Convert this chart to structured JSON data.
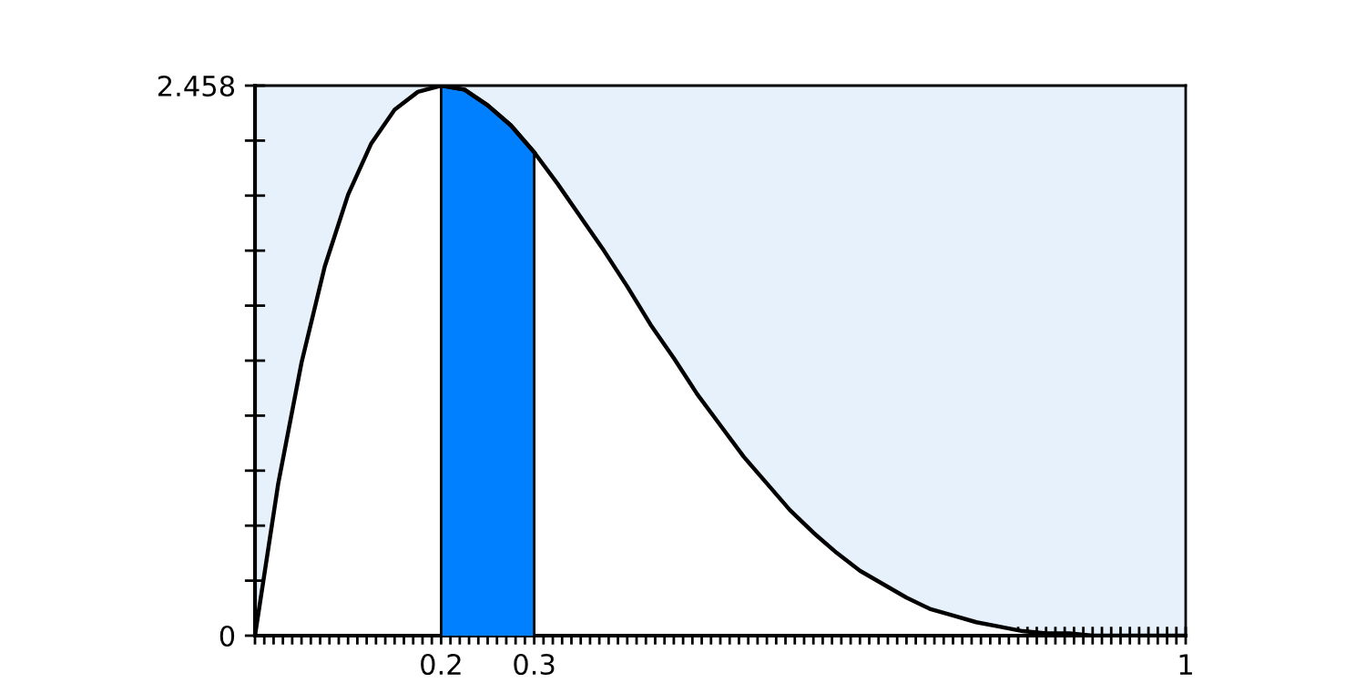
{
  "chart_data": {
    "type": "area",
    "series": [
      {
        "color": "#ffffff",
        "x": [
          0,
          0.025,
          0.05,
          0.075,
          0.1,
          0.125,
          0.15,
          0.175,
          0.2,
          0.225,
          0.25,
          0.275,
          0.3,
          0.325,
          0.35,
          0.375,
          0.4,
          0.425,
          0.45,
          0.475,
          0.5,
          0.525,
          0.55,
          0.575,
          0.6,
          0.625,
          0.65,
          0.675,
          0.7,
          0.725,
          0.75,
          0.775,
          0.8,
          0.825,
          0.85,
          0.875,
          0.9,
          0.925,
          0.95,
          0.975,
          1
        ],
        "values": [
          0,
          0.68,
          1.22,
          1.65,
          1.97,
          2.2,
          2.35,
          2.43,
          2.458,
          2.44,
          2.37,
          2.28,
          2.16,
          2.02,
          1.87,
          1.72,
          1.56,
          1.39,
          1.24,
          1.08,
          0.94,
          0.8,
          0.68,
          0.56,
          0.46,
          0.37,
          0.29,
          0.23,
          0.17,
          0.12,
          0.09,
          0.06,
          0.04,
          0.02,
          0.01,
          0.01,
          0,
          0,
          0,
          0,
          0
        ]
      },
      {
        "color": "#0080ff",
        "x": [
          0.2,
          0.225,
          0.25,
          0.275,
          0.3
        ],
        "values": [
          2.458,
          2.44,
          2.37,
          2.28,
          2.16
        ]
      }
    ],
    "xlim": [
      0,
      1
    ],
    "ylim": [
      0,
      2.458
    ],
    "xticks": [
      {
        "value": 0,
        "label": null
      },
      {
        "value": 0.01,
        "label": null
      },
      {
        "value": 0.02,
        "label": null
      },
      {
        "value": 0.03,
        "label": null
      },
      {
        "value": 0.04,
        "label": null
      },
      {
        "value": 0.05,
        "label": null
      },
      {
        "value": 0.06,
        "label": null
      },
      {
        "value": 0.07,
        "label": null
      },
      {
        "value": 0.08,
        "label": null
      },
      {
        "value": 0.09,
        "label": null
      },
      {
        "value": 0.1,
        "label": null
      },
      {
        "value": 0.11,
        "label": null
      },
      {
        "value": 0.12,
        "label": null
      },
      {
        "value": 0.13,
        "label": null
      },
      {
        "value": 0.14,
        "label": null
      },
      {
        "value": 0.15,
        "label": null
      },
      {
        "value": 0.16,
        "label": null
      },
      {
        "value": 0.17,
        "label": null
      },
      {
        "value": 0.18,
        "label": null
      },
      {
        "value": 0.19,
        "label": null
      },
      0.2,
      {
        "value": 0.21,
        "label": null
      },
      {
        "value": 0.22,
        "label": null
      },
      {
        "value": 0.23,
        "label": null
      },
      {
        "value": 0.24,
        "label": null
      },
      {
        "value": 0.25,
        "label": null
      },
      {
        "value": 0.26,
        "label": null
      },
      {
        "value": 0.27,
        "label": null
      },
      {
        "value": 0.28,
        "label": null
      },
      {
        "value": 0.29,
        "label": null
      },
      0.3,
      {
        "value": 0.31,
        "label": null
      },
      {
        "value": 0.32,
        "label": null
      },
      {
        "value": 0.33,
        "label": null
      },
      {
        "value": 0.34,
        "label": null
      },
      {
        "value": 0.35,
        "label": null
      },
      {
        "value": 0.36,
        "label": null
      },
      {
        "value": 0.37,
        "label": null
      },
      {
        "value": 0.38,
        "label": null
      },
      {
        "value": 0.39,
        "label": null
      },
      {
        "value": 0.4,
        "label": null
      },
      {
        "value": 0.41,
        "label": null
      },
      {
        "value": 0.42,
        "label": null
      },
      {
        "value": 0.43,
        "label": null
      },
      {
        "value": 0.44,
        "label": null
      },
      {
        "value": 0.45,
        "label": null
      },
      {
        "value": 0.46,
        "label": null
      },
      {
        "value": 0.47,
        "label": null
      },
      {
        "value": 0.48,
        "label": null
      },
      {
        "value": 0.49,
        "label": null
      },
      {
        "value": 0.5,
        "label": null
      },
      {
        "value": 0.51,
        "label": null
      },
      {
        "value": 0.52,
        "label": null
      },
      {
        "value": 0.53,
        "label": null
      },
      {
        "value": 0.54,
        "label": null
      },
      {
        "value": 0.55,
        "label": null
      },
      {
        "value": 0.56,
        "label": null
      },
      {
        "value": 0.57,
        "label": null
      },
      {
        "value": 0.58,
        "label": null
      },
      {
        "value": 0.59,
        "label": null
      },
      {
        "value": 0.6,
        "label": null
      },
      {
        "value": 0.61,
        "label": null
      },
      {
        "value": 0.62,
        "label": null
      },
      {
        "value": 0.63,
        "label": null
      },
      {
        "value": 0.64,
        "label": null
      },
      {
        "value": 0.65,
        "label": null
      },
      {
        "value": 0.66,
        "label": null
      },
      {
        "value": 0.67,
        "label": null
      },
      {
        "value": 0.68,
        "label": null
      },
      {
        "value": 0.69,
        "label": null
      },
      {
        "value": 0.7,
        "label": null
      },
      {
        "value": 0.71,
        "label": null
      },
      {
        "value": 0.72,
        "label": null
      },
      {
        "value": 0.73,
        "label": null
      },
      {
        "value": 0.74,
        "label": null
      },
      {
        "value": 0.75,
        "label": null
      },
      {
        "value": 0.76,
        "label": null
      },
      {
        "value": 0.77,
        "label": null
      },
      {
        "value": 0.78,
        "label": null
      },
      {
        "value": 0.79,
        "label": null
      },
      {
        "value": 0.8,
        "label": null
      },
      {
        "value": 0.81,
        "label": null
      },
      {
        "value": 0.82,
        "label": null
      },
      {
        "value": 0.83,
        "label": null
      },
      {
        "value": 0.84,
        "label": null
      },
      {
        "value": 0.85,
        "label": null
      },
      {
        "value": 0.86,
        "label": null
      },
      {
        "value": 0.87,
        "label": null
      },
      {
        "value": 0.88,
        "label": null
      },
      {
        "value": 0.89,
        "label": null
      },
      {
        "value": 0.9,
        "label": null
      },
      {
        "value": 0.91,
        "label": null
      },
      {
        "value": 0.92,
        "label": null
      },
      {
        "value": 0.93,
        "label": null
      },
      {
        "value": 0.94,
        "label": null
      },
      {
        "value": 0.95,
        "label": null
      },
      {
        "value": 0.96,
        "label": null
      },
      {
        "value": 0.97,
        "label": null
      },
      {
        "value": 0.98,
        "label": null
      },
      {
        "value": 0.99,
        "label": null
      },
      1
    ],
    "yticks": [
      0,
      {
        "value": 0.2458,
        "label": null
      },
      {
        "value": 0.4916,
        "label": null
      },
      {
        "value": 0.7374,
        "label": null
      },
      {
        "value": 0.9832,
        "label": null
      },
      {
        "value": 1.229,
        "label": null
      },
      {
        "value": 1.4748,
        "label": null
      },
      {
        "value": 1.7206,
        "label": null
      },
      {
        "value": 1.9664,
        "label": null
      },
      {
        "value": 2.2122,
        "label": null
      },
      2.458
    ],
    "legend": false
  }
}
